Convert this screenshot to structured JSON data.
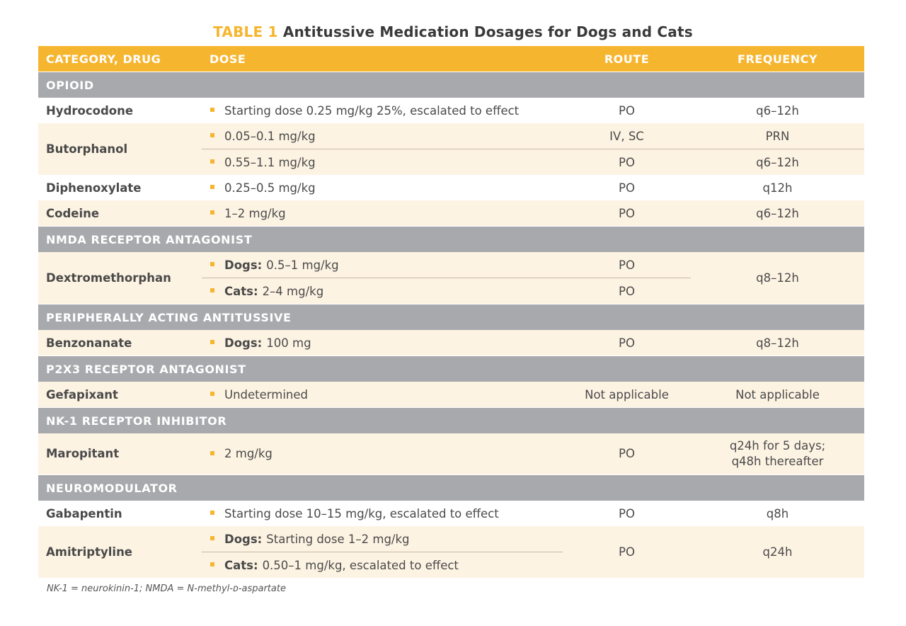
{
  "title": {
    "number": "TABLE 1",
    "text": "Antitussive Medication Dosages for Dogs and Cats"
  },
  "colors": {
    "accent": "#f6b52f",
    "category_bg": "#a7a9ac",
    "band_bg": "#fdf3e3"
  },
  "headers": {
    "drug": "CATEGORY, DRUG",
    "dose": "DOSE",
    "route": "ROUTE",
    "frequency": "FREQUENCY"
  },
  "categories": {
    "opioid": "OPIOID",
    "nmda": "NMDA RECEPTOR ANTAGONIST",
    "peripheral": "PERIPHERALLY ACTING ANTITUSSIVE",
    "p2x3": "P2X3 RECEPTOR ANTAGONIST",
    "nk1": "NK-1 RECEPTOR INHIBITOR",
    "neuro": "NEUROMODULATOR"
  },
  "rows": {
    "hydrocodone": {
      "drug": "Hydrocodone",
      "dose": "Starting dose 0.25 mg/kg 25%, escalated to effect",
      "route": "PO",
      "freq": "q6–12h"
    },
    "butorphanol": {
      "drug": "Butorphanol",
      "dose1": "0.05–0.1 mg/kg",
      "route1": "IV, SC",
      "freq1": "PRN",
      "dose2": "0.55–1.1 mg/kg",
      "route2": "PO",
      "freq2": "q6–12h"
    },
    "diphenoxylate": {
      "drug": "Diphenoxylate",
      "dose": "0.25–0.5 mg/kg",
      "route": "PO",
      "freq": "q12h"
    },
    "codeine": {
      "drug": "Codeine",
      "dose": "1–2 mg/kg",
      "route": "PO",
      "freq": "q6–12h"
    },
    "dextromethorphan": {
      "drug": "Dextromethorphan",
      "label1": "Dogs:",
      "dose1": "0.5–1 mg/kg",
      "route1": "PO",
      "label2": "Cats:",
      "dose2": "2–4 mg/kg",
      "route2": "PO",
      "freq": "q8–12h"
    },
    "benzonanate": {
      "drug": "Benzonanate",
      "label": "Dogs:",
      "dose": "100 mg",
      "route": "PO",
      "freq": "q8–12h"
    },
    "gefapixant": {
      "drug": "Gefapixant",
      "dose": "Undetermined",
      "route": "Not applicable",
      "freq": "Not applicable"
    },
    "maropitant": {
      "drug": "Maropitant",
      "dose": "2 mg/kg",
      "route": "PO",
      "freq1": "q24h for 5 days;",
      "freq2": "q48h thereafter"
    },
    "gabapentin": {
      "drug": "Gabapentin",
      "dose": "Starting dose 10–15 mg/kg, escalated to effect",
      "route": "PO",
      "freq": "q8h"
    },
    "amitriptyline": {
      "drug": "Amitriptyline",
      "label1": "Dogs:",
      "dose1": "Starting dose 1–2 mg/kg",
      "label2": "Cats:",
      "dose2": "0.50–1 mg/kg, escalated to effect",
      "route": "PO",
      "freq": "q24h"
    }
  },
  "footnote": "NK-1 = neurokinin-1; NMDA = N-methyl-ᴅ-aspartate"
}
